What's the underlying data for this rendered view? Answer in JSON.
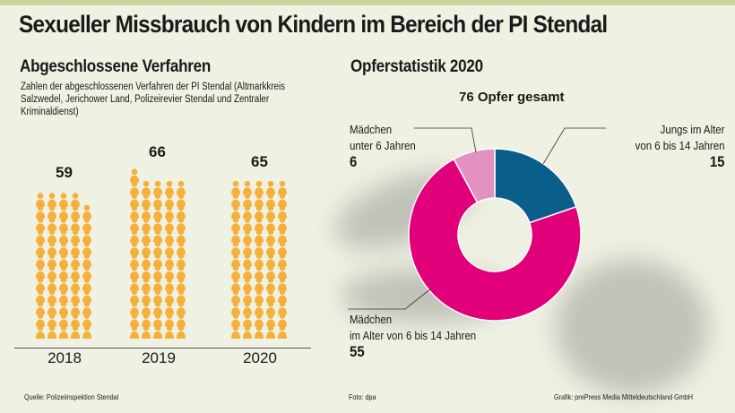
{
  "title": "Sexueller Missbrauch von Kindern im Bereich der PI Stendal",
  "colors": {
    "icon": "#f4b03a",
    "boys": "#0a5f8a",
    "girls_6_14": "#e2007a",
    "girls_under6": "#e391c0",
    "topbar": "#c7d49c"
  },
  "chart_data": [
    {
      "type": "bar",
      "title": "Abgeschlossene Verfahren",
      "subtitle": "Zahlen der abgeschlossenen Verfahren der PI Stendal (Altmarkkreis Salzwedel, Jerichower Land, Polizeirevier Stendal und Zentraler Kriminaldienst)",
      "icon": "person-icon",
      "categories": [
        "2018",
        "2019",
        "2020"
      ],
      "values": [
        59,
        66,
        65
      ]
    },
    {
      "type": "pie",
      "title": "Opferstatistik 2020",
      "total_label": "76 Opfer gesamt",
      "slices": [
        {
          "label_line1": "Jungs im Alter",
          "label_line2": "von 6 bis 14 Jahren",
          "value": 15,
          "color": "#0a5f8a"
        },
        {
          "label_line1": "Mädchen",
          "label_line2": "im Alter von 6 bis 14 Jahren",
          "value": 55,
          "color": "#e2007a"
        },
        {
          "label_line1": "Mädchen",
          "label_line2": "unter 6 Jahren",
          "value": 6,
          "color": "#e391c0"
        }
      ]
    }
  ],
  "footer": {
    "source": "Quelle: Polizeiinspektion Stendal",
    "photo": "Foto: dpa",
    "graphic": "Grafik: prePress Media Mitteldeutschland GmbH"
  }
}
